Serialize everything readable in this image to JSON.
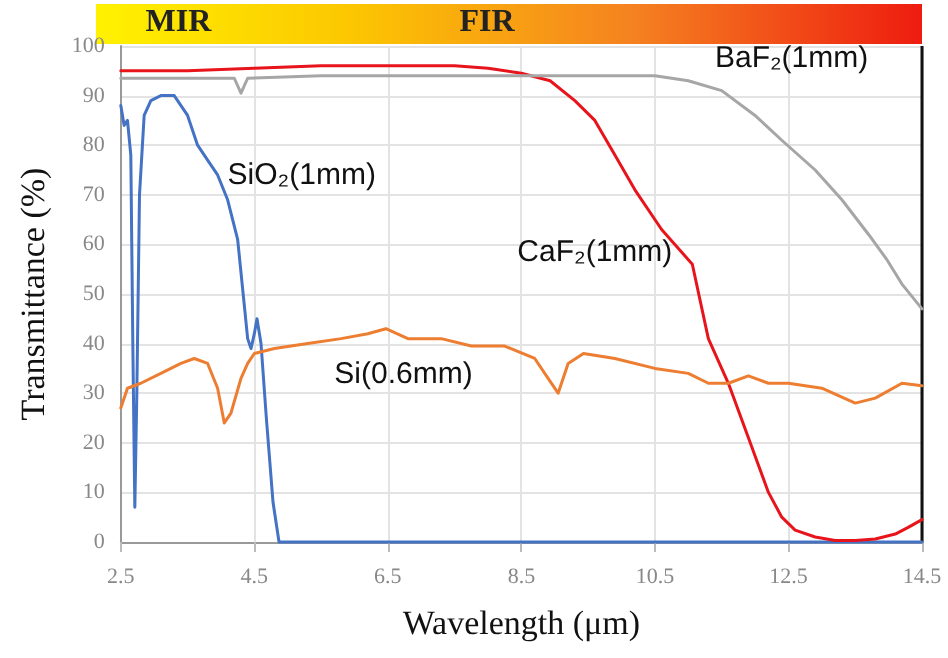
{
  "chart_data": {
    "type": "line",
    "xlabel": "Wavelength (μm)",
    "ylabel": "Transmittance (%)",
    "annotations": [
      "MIR",
      "FIR"
    ],
    "xlim": [
      2.5,
      14.5
    ],
    "xticks": [
      2.5,
      4.5,
      6.5,
      8.5,
      10.5,
      12.5,
      14.5
    ],
    "ylim": [
      0,
      100
    ],
    "yticks": [
      0,
      10,
      20,
      30,
      40,
      50,
      60,
      70,
      80,
      90,
      100
    ],
    "grid": true,
    "legend": false,
    "marker": "none",
    "line_style": "solid",
    "series": [
      {
        "name": "SiO₂(1mm)",
        "color": "#4472c4",
        "x": [
          2.5,
          2.55,
          2.6,
          2.65,
          2.68,
          2.71,
          2.74,
          2.78,
          2.85,
          2.95,
          3.1,
          3.3,
          3.5,
          3.65,
          3.8,
          3.95,
          4.1,
          4.25,
          4.34,
          4.4,
          4.45,
          4.5,
          4.54,
          4.6,
          4.68,
          4.78,
          4.87,
          5.2,
          8,
          11,
          14.5
        ],
        "values": [
          88,
          84,
          85,
          78,
          40,
          7,
          30,
          70,
          86,
          89,
          90,
          90,
          86,
          80,
          77,
          74,
          69,
          61,
          49,
          41,
          39,
          42,
          45,
          40,
          25,
          8,
          0,
          0,
          0,
          0,
          0
        ]
      },
      {
        "name": "CaF₂(1mm)",
        "color": "#e8141c",
        "x": [
          2.5,
          3.5,
          4.5,
          5.5,
          6.5,
          7.5,
          8,
          8.5,
          8.93,
          9.3,
          9.6,
          9.9,
          10.2,
          10.6,
          11.06,
          11.3,
          11.6,
          11.9,
          12.2,
          12.4,
          12.6,
          12.9,
          13.2,
          13.5,
          13.8,
          14.1,
          14.3,
          14.5
        ],
        "values": [
          95,
          95,
          95.5,
          96,
          96,
          96,
          95.5,
          94.5,
          93,
          89,
          85,
          78,
          71,
          63,
          56,
          41,
          32,
          21,
          10,
          5,
          2.4,
          1,
          0.3,
          0.3,
          0.6,
          1.6,
          3,
          4.5
        ]
      },
      {
        "name": "BaF₂(1mm)",
        "color": "#a6a6a6",
        "x": [
          2.5,
          3.5,
          4.2,
          4.3,
          4.4,
          5.5,
          7,
          8.5,
          9.5,
          10.5,
          11,
          11.5,
          12,
          12.4,
          12.9,
          13.3,
          13.7,
          13.97,
          14.2,
          14.5
        ],
        "values": [
          93.5,
          93.5,
          93.5,
          90.5,
          93.5,
          94,
          94,
          94,
          94,
          94,
          93,
          91,
          86,
          81,
          75,
          69,
          62,
          57,
          52,
          47
        ]
      },
      {
        "name": "Si(0.6mm)",
        "color": "#ed7d31",
        "x": [
          2.5,
          2.6,
          2.8,
          3.1,
          3.4,
          3.6,
          3.8,
          3.95,
          4.05,
          4.15,
          4.3,
          4.4,
          4.5,
          4.8,
          5.3,
          5.8,
          6.2,
          6.47,
          6.8,
          7.3,
          7.75,
          8.25,
          8.7,
          8.9,
          9.05,
          9.2,
          9.43,
          9.9,
          10.5,
          11,
          11.3,
          11.6,
          11.9,
          12.2,
          12.5,
          13,
          13.5,
          13.8,
          14.2,
          14.5
        ],
        "values": [
          27,
          31,
          32,
          34,
          36,
          37,
          36,
          31,
          24,
          26,
          33,
          36,
          38,
          39,
          40,
          41,
          42,
          43,
          41,
          41,
          39.5,
          39.5,
          37,
          33,
          30,
          36,
          38,
          37,
          35,
          34,
          32,
          32,
          33.5,
          32,
          32,
          31,
          28,
          29,
          32,
          31.5
        ]
      }
    ]
  }
}
